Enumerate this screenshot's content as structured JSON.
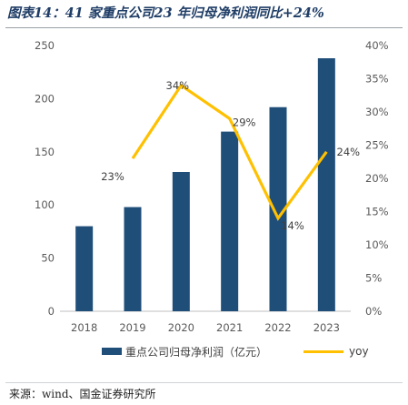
{
  "figure_title": "图表14：41 家重点公司23 年归母净利润同比+24%",
  "source": "来源：wind、国金证券研究所",
  "colors": {
    "bar": "#1f4e79",
    "line": "#ffc000",
    "axis_text": "#595959"
  },
  "chart_data": {
    "type": "bar",
    "categories": [
      "2018",
      "2019",
      "2020",
      "2021",
      "2022",
      "2023"
    ],
    "series": [
      {
        "name": "重点公司归母净利润（亿元）",
        "type": "bar",
        "axis": "left",
        "values": [
          80,
          98,
          131,
          169,
          192,
          238
        ]
      },
      {
        "name": "yoy",
        "type": "line",
        "axis": "right",
        "values": [
          null,
          0.23,
          0.34,
          0.29,
          0.14,
          0.24
        ]
      }
    ],
    "data_labels": [
      null,
      "23%",
      "34%",
      "29%",
      "14%",
      "24%"
    ],
    "y_left": {
      "min": 0,
      "max": 250,
      "ticks": [
        "0",
        "50",
        "100",
        "150",
        "200",
        "250"
      ]
    },
    "y_right": {
      "min": 0,
      "max": 0.4,
      "ticks": [
        "0%",
        "5%",
        "10%",
        "15%",
        "20%",
        "25%",
        "30%",
        "35%",
        "40%"
      ]
    },
    "grid": false,
    "legend_position": "bottom"
  }
}
